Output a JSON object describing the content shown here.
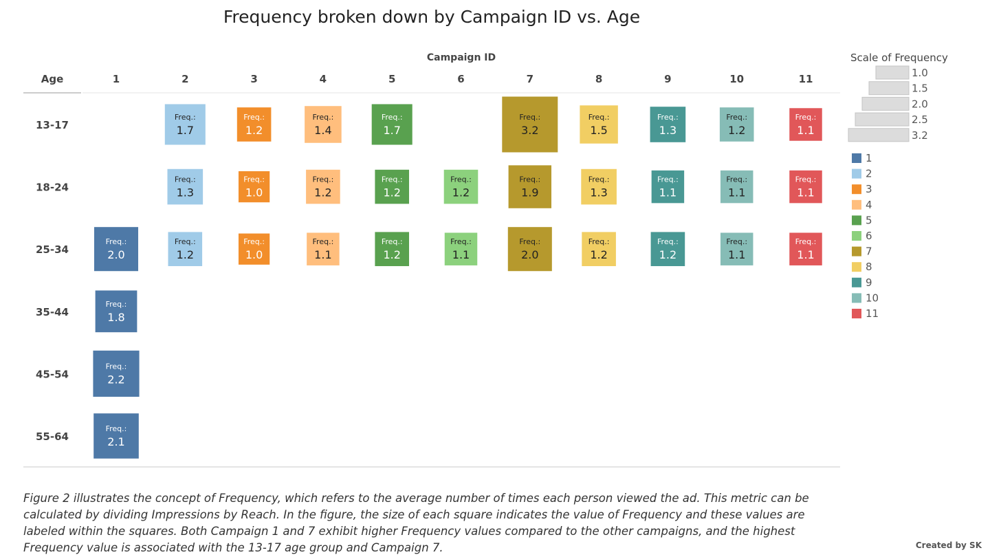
{
  "chart_data": {
    "type": "heatmap",
    "title": "Frequency broken down by Campaign ID vs. Age",
    "col_header": "Campaign ID",
    "row_header": "Age",
    "columns": [
      "1",
      "2",
      "3",
      "4",
      "5",
      "6",
      "7",
      "8",
      "9",
      "10",
      "11"
    ],
    "rows": [
      "13-17",
      "18-24",
      "25-34",
      "35-44",
      "45-54",
      "55-64"
    ],
    "mark_label_prefix": "Freq.:",
    "cells": [
      {
        "age": "13-17",
        "campaign": "2",
        "value": 1.7
      },
      {
        "age": "13-17",
        "campaign": "3",
        "value": 1.2
      },
      {
        "age": "13-17",
        "campaign": "4",
        "value": 1.4
      },
      {
        "age": "13-17",
        "campaign": "5",
        "value": 1.7
      },
      {
        "age": "13-17",
        "campaign": "7",
        "value": 3.2
      },
      {
        "age": "13-17",
        "campaign": "8",
        "value": 1.5
      },
      {
        "age": "13-17",
        "campaign": "9",
        "value": 1.3
      },
      {
        "age": "13-17",
        "campaign": "10",
        "value": 1.2
      },
      {
        "age": "13-17",
        "campaign": "11",
        "value": 1.1
      },
      {
        "age": "18-24",
        "campaign": "2",
        "value": 1.3
      },
      {
        "age": "18-24",
        "campaign": "3",
        "value": 1.0
      },
      {
        "age": "18-24",
        "campaign": "4",
        "value": 1.2
      },
      {
        "age": "18-24",
        "campaign": "5",
        "value": 1.2
      },
      {
        "age": "18-24",
        "campaign": "6",
        "value": 1.2
      },
      {
        "age": "18-24",
        "campaign": "7",
        "value": 1.9
      },
      {
        "age": "18-24",
        "campaign": "8",
        "value": 1.3
      },
      {
        "age": "18-24",
        "campaign": "9",
        "value": 1.1
      },
      {
        "age": "18-24",
        "campaign": "10",
        "value": 1.1
      },
      {
        "age": "18-24",
        "campaign": "11",
        "value": 1.1
      },
      {
        "age": "25-34",
        "campaign": "1",
        "value": 2.0
      },
      {
        "age": "25-34",
        "campaign": "2",
        "value": 1.2
      },
      {
        "age": "25-34",
        "campaign": "3",
        "value": 1.0
      },
      {
        "age": "25-34",
        "campaign": "4",
        "value": 1.1
      },
      {
        "age": "25-34",
        "campaign": "5",
        "value": 1.2
      },
      {
        "age": "25-34",
        "campaign": "6",
        "value": 1.1
      },
      {
        "age": "25-34",
        "campaign": "7",
        "value": 2.0
      },
      {
        "age": "25-34",
        "campaign": "8",
        "value": 1.2
      },
      {
        "age": "25-34",
        "campaign": "9",
        "value": 1.2
      },
      {
        "age": "25-34",
        "campaign": "10",
        "value": 1.1
      },
      {
        "age": "25-34",
        "campaign": "11",
        "value": 1.1
      },
      {
        "age": "35-44",
        "campaign": "1",
        "value": 1.8
      },
      {
        "age": "45-54",
        "campaign": "1",
        "value": 2.2
      },
      {
        "age": "55-64",
        "campaign": "1",
        "value": 2.1
      }
    ],
    "colors": {
      "1": "#4e79a7",
      "2": "#a0cbe8",
      "3": "#f28e2b",
      "4": "#ffbe7d",
      "5": "#59a14f",
      "6": "#8cd17d",
      "7": "#b6992d",
      "8": "#f1ce63",
      "9": "#499894",
      "10": "#86bcb6",
      "11": "#e15759"
    },
    "size_legend": {
      "title": "Scale of Frequency",
      "values": [
        1.0,
        1.5,
        2.0,
        2.5,
        3.2
      ]
    },
    "color_legend": [
      "1",
      "2",
      "3",
      "4",
      "5",
      "6",
      "7",
      "8",
      "9",
      "10",
      "11"
    ]
  },
  "caption": "Figure 2 illustrates the concept of Frequency, which refers to the average number of times each person viewed the ad. This metric can be calculated by dividing Impressions by Reach. In the figure, the size of each square indicates the value of Frequency and these values are labeled within the squares. Both Campaign 1 and 7 exhibit higher Frequency values compared to the other campaigns, and the highest Frequency value is associated with the 13-17 age group and Campaign 7.",
  "credit": "Created by SK"
}
